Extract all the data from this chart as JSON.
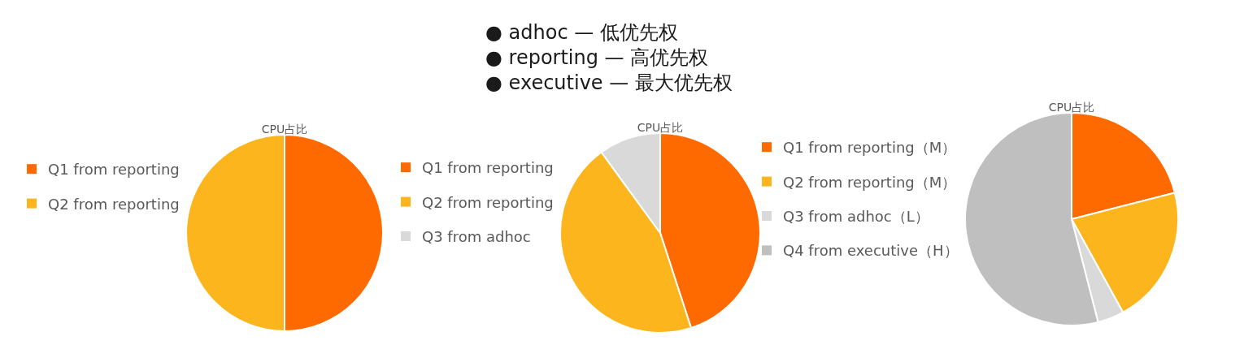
{
  "chart_data": [
    {
      "type": "other",
      "annotations": [
        "● adhoc — 低优先权",
        "● reporting — 高优先权",
        "● executive — 最大优先权"
      ]
    },
    {
      "type": "pie",
      "title": "CPU占比",
      "categories": [
        "Q1 from reporting",
        "Q2 from reporting"
      ],
      "values": [
        50,
        50
      ],
      "colors": [
        "#ff6a00",
        "#fdb51e"
      ],
      "legend": "left"
    },
    {
      "type": "pie",
      "title": "CPU占比",
      "categories": [
        "Q1 from reporting",
        "Q2 from reporting",
        "Q3 from adhoc"
      ],
      "values": [
        45,
        45,
        10
      ],
      "colors": [
        "#ff6a00",
        "#fdb51e",
        "#d9d9d9"
      ],
      "legend": "left"
    },
    {
      "type": "pie",
      "title": "CPU占比",
      "categories": [
        "Q1 from reporting（M）",
        "Q2 from reporting（M）",
        "Q3 from adhoc（L）",
        "Q4 from executive（H）"
      ],
      "values": [
        21,
        21,
        4,
        54
      ],
      "colors": [
        "#ff6a00",
        "#fdb51e",
        "#d9d9d9",
        "#bfbfbf"
      ],
      "legend": "left"
    }
  ]
}
